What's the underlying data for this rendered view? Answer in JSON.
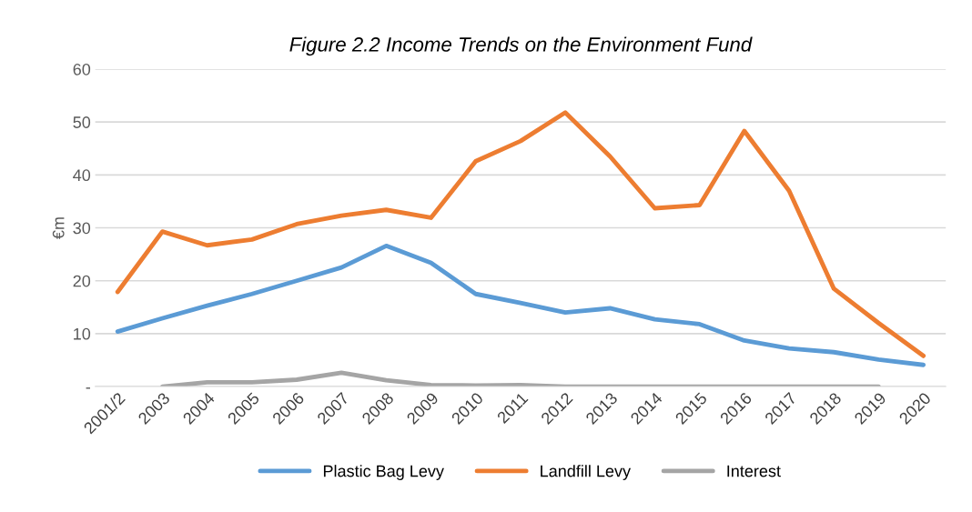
{
  "chart_data": {
    "type": "line",
    "title": "Figure 2.2 Income Trends on the Environment Fund",
    "ylabel": "€m",
    "categories": [
      "2001/2",
      "2003",
      "2004",
      "2005",
      "2006",
      "2007",
      "2008",
      "2009",
      "2010",
      "2011",
      "2012",
      "2013",
      "2014",
      "2015",
      "2016",
      "2017",
      "2018",
      "2019",
      "2020"
    ],
    "series": [
      {
        "name": "Plastic Bag Levy",
        "color": "#5b9bd5",
        "values": [
          10.4,
          12.9,
          15.3,
          17.5,
          20,
          22.5,
          26.6,
          23.4,
          17.5,
          15.8,
          14,
          14.8,
          12.7,
          11.8,
          8.7,
          7.2,
          6.5,
          5.1,
          4.1
        ]
      },
      {
        "name": "Landfill Levy",
        "color": "#ed7d31",
        "values": [
          17.9,
          29.3,
          26.7,
          27.8,
          30.7,
          32.3,
          33.4,
          31.9,
          42.6,
          46.4,
          51.8,
          43.5,
          33.7,
          34.3,
          48.3,
          37,
          18.5,
          12,
          5.8
        ]
      },
      {
        "name": "Interest",
        "color": "#a5a5a5",
        "values": [
          null,
          0,
          0.8,
          0.8,
          1.3,
          2.6,
          1.2,
          0.3,
          0.2,
          0.3,
          0,
          0,
          0,
          0,
          0,
          0,
          0,
          0,
          null
        ]
      }
    ],
    "ylim": [
      0,
      60
    ],
    "yticks": [
      {
        "value": 0,
        "label": "-"
      },
      10,
      20,
      30,
      40,
      50,
      60
    ],
    "grid": "y",
    "legend": "bottom",
    "marker": "none",
    "line_style": "solid"
  }
}
